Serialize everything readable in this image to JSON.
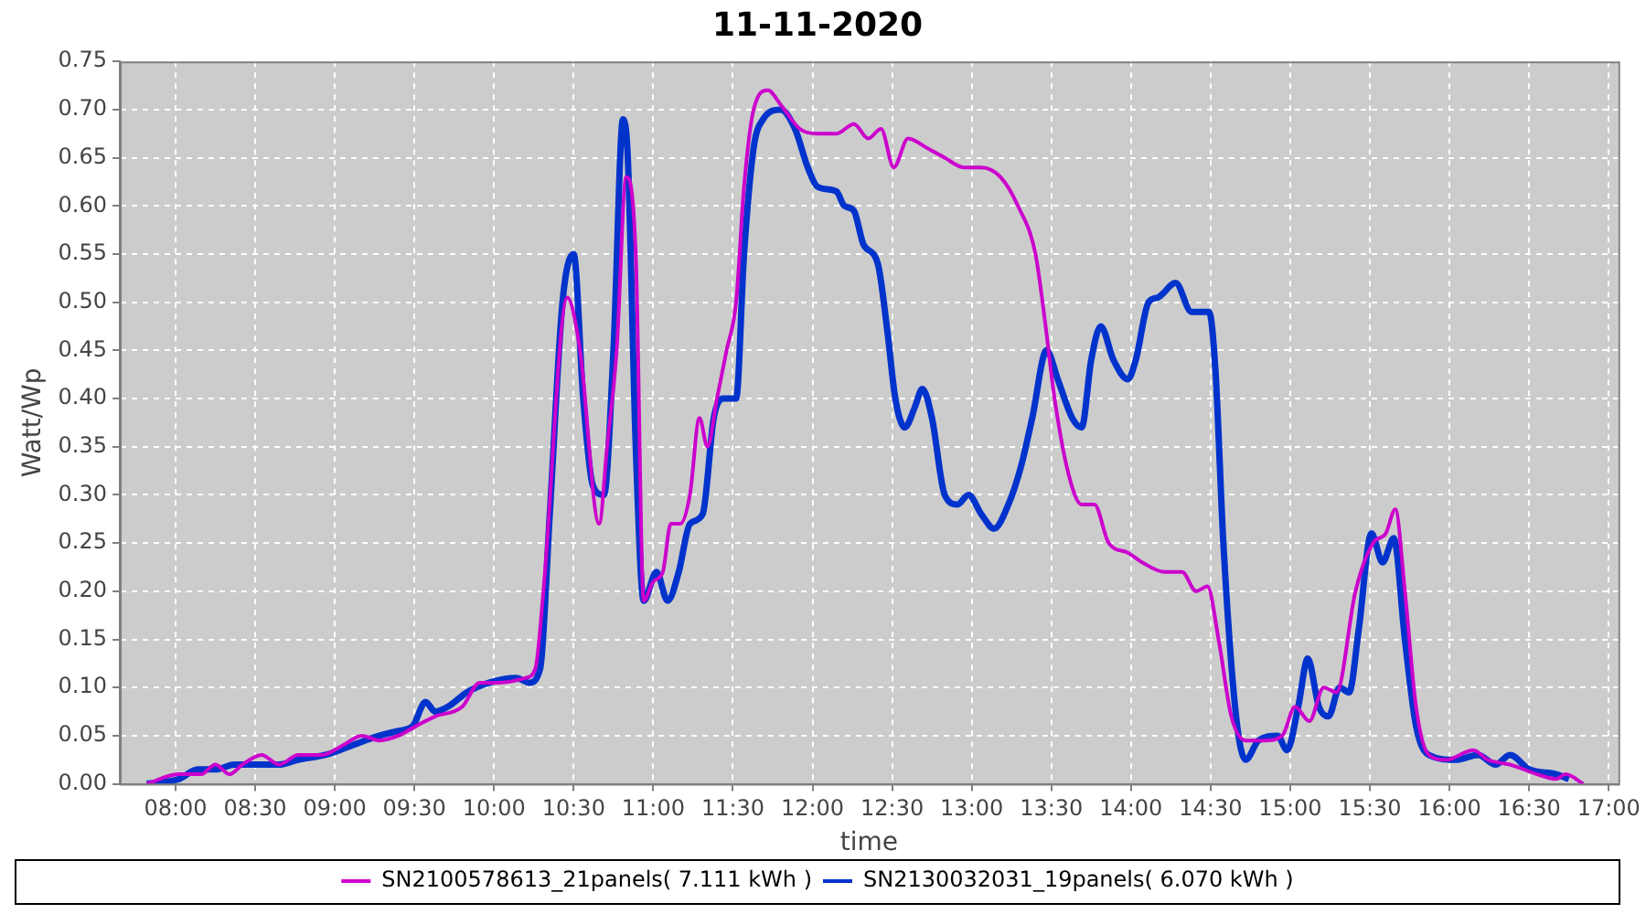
{
  "chart_data": {
    "type": "line",
    "title": "11-11-2020",
    "xlabel": "time",
    "ylabel": "Watt/Wp",
    "xlim": [
      7.65,
      17.06
    ],
    "ylim": [
      0,
      0.75
    ],
    "xticks": [
      {
        "value": 8,
        "label": "08:00"
      },
      {
        "value": 8.5,
        "label": "08:30"
      },
      {
        "value": 9,
        "label": "09:00"
      },
      {
        "value": 9.5,
        "label": "09:30"
      },
      {
        "value": 10,
        "label": "10:00"
      },
      {
        "value": 10.5,
        "label": "10:30"
      },
      {
        "value": 11,
        "label": "11:00"
      },
      {
        "value": 11.5,
        "label": "11:30"
      },
      {
        "value": 12,
        "label": "12:00"
      },
      {
        "value": 12.5,
        "label": "12:30"
      },
      {
        "value": 13,
        "label": "13:00"
      },
      {
        "value": 13.5,
        "label": "13:30"
      },
      {
        "value": 14,
        "label": "14:00"
      },
      {
        "value": 14.5,
        "label": "14:30"
      },
      {
        "value": 15,
        "label": "15:00"
      },
      {
        "value": 15.5,
        "label": "15:30"
      },
      {
        "value": 16,
        "label": "16:00"
      },
      {
        "value": 16.5,
        "label": "16:30"
      },
      {
        "value": 17,
        "label": "17:00"
      }
    ],
    "yticks": [
      {
        "value": 0,
        "label": "0.00"
      },
      {
        "value": 0.05,
        "label": "0.05"
      },
      {
        "value": 0.1,
        "label": "0.10"
      },
      {
        "value": 0.15,
        "label": "0.15"
      },
      {
        "value": 0.2,
        "label": "0.20"
      },
      {
        "value": 0.25,
        "label": "0.25"
      },
      {
        "value": 0.3,
        "label": "0.30"
      },
      {
        "value": 0.35,
        "label": "0.35"
      },
      {
        "value": 0.4,
        "label": "0.40"
      },
      {
        "value": 0.45,
        "label": "0.45"
      },
      {
        "value": 0.5,
        "label": "0.50"
      },
      {
        "value": 0.55,
        "label": "0.55"
      },
      {
        "value": 0.6,
        "label": "0.60"
      },
      {
        "value": 0.65,
        "label": "0.65"
      },
      {
        "value": 0.7,
        "label": "0.70"
      },
      {
        "value": 0.75,
        "label": "0.75"
      }
    ],
    "grid": true,
    "legend": "bottom",
    "series": [
      {
        "name": "SN2100578613_21panels( 7.111 kWh )",
        "color": "#cc00cc",
        "x": [
          7.82,
          8.02,
          8.16,
          8.25,
          8.34,
          8.42,
          8.54,
          8.65,
          8.77,
          8.92,
          9.05,
          9.17,
          9.28,
          9.4,
          9.51,
          9.63,
          9.8,
          9.91,
          10.03,
          10.2,
          10.26,
          10.31,
          10.46,
          10.54,
          10.66,
          10.71,
          10.77,
          10.83,
          10.89,
          10.94,
          11.0,
          11.06,
          11.11,
          11.17,
          11.23,
          11.29,
          11.34,
          11.4,
          11.46,
          11.52,
          11.57,
          11.63,
          11.72,
          11.8,
          11.92,
          12.03,
          12.15,
          12.26,
          12.35,
          12.43,
          12.51,
          12.6,
          12.72,
          12.83,
          12.95,
          13.06,
          13.18,
          13.29,
          13.4,
          13.46,
          13.52,
          13.61,
          13.69,
          13.77,
          13.86,
          13.98,
          14.07,
          14.21,
          14.32,
          14.41,
          14.48,
          14.55,
          14.63,
          14.72,
          14.84,
          14.95,
          15.03,
          15.12,
          15.21,
          15.29,
          15.41,
          15.52,
          15.6,
          15.66,
          15.72,
          15.79,
          15.87,
          15.98,
          16.15,
          16.24,
          16.38,
          16.55,
          16.67,
          16.73,
          16.84
        ],
        "values": [
          0.0,
          0.01,
          0.01,
          0.02,
          0.01,
          0.02,
          0.03,
          0.02,
          0.03,
          0.03,
          0.04,
          0.05,
          0.045,
          0.05,
          0.06,
          0.07,
          0.08,
          0.105,
          0.105,
          0.11,
          0.12,
          0.2,
          0.505,
          0.45,
          0.27,
          0.35,
          0.45,
          0.63,
          0.55,
          0.19,
          0.21,
          0.22,
          0.27,
          0.27,
          0.3,
          0.38,
          0.35,
          0.4,
          0.45,
          0.5,
          0.62,
          0.7,
          0.72,
          0.705,
          0.68,
          0.675,
          0.675,
          0.685,
          0.67,
          0.68,
          0.64,
          0.67,
          0.66,
          0.65,
          0.64,
          0.64,
          0.63,
          0.6,
          0.55,
          0.48,
          0.4,
          0.32,
          0.29,
          0.29,
          0.25,
          0.24,
          0.23,
          0.22,
          0.22,
          0.2,
          0.205,
          0.15,
          0.07,
          0.045,
          0.045,
          0.05,
          0.08,
          0.065,
          0.1,
          0.095,
          0.2,
          0.25,
          0.26,
          0.285,
          0.2,
          0.08,
          0.03,
          0.025,
          0.035,
          0.025,
          0.02,
          0.01,
          0.005,
          0.01,
          0.0
        ]
      },
      {
        "name": "SN2130032031_19panels( 6.070 kWh )",
        "color": "#0033cc",
        "x": [
          7.82,
          8.02,
          8.14,
          8.25,
          8.37,
          8.48,
          8.65,
          8.77,
          8.94,
          9.11,
          9.28,
          9.4,
          9.49,
          9.57,
          9.63,
          9.71,
          9.83,
          9.97,
          10.14,
          10.22,
          10.29,
          10.35,
          10.43,
          10.5,
          10.56,
          10.62,
          10.69,
          10.75,
          10.81,
          10.84,
          10.89,
          10.94,
          11.02,
          11.09,
          11.16,
          11.23,
          11.31,
          11.38,
          11.44,
          11.52,
          11.57,
          11.63,
          11.69,
          11.8,
          11.89,
          11.97,
          12.03,
          12.15,
          12.2,
          12.26,
          12.32,
          12.41,
          12.47,
          12.52,
          12.58,
          12.64,
          12.69,
          12.75,
          12.83,
          12.91,
          12.98,
          13.06,
          13.14,
          13.23,
          13.31,
          13.38,
          13.47,
          13.54,
          13.63,
          13.69,
          13.75,
          13.81,
          13.89,
          13.98,
          14.03,
          14.11,
          14.17,
          14.28,
          14.38,
          14.49,
          14.53,
          14.58,
          14.66,
          14.72,
          14.8,
          14.92,
          14.98,
          15.05,
          15.11,
          15.18,
          15.24,
          15.31,
          15.37,
          15.43,
          15.51,
          15.58,
          15.65,
          15.72,
          15.79,
          15.87,
          16.04,
          16.18,
          16.29,
          16.38,
          16.5,
          16.67,
          16.75
        ],
        "values": [
          0.0,
          0.005,
          0.015,
          0.015,
          0.02,
          0.02,
          0.02,
          0.025,
          0.03,
          0.04,
          0.05,
          0.055,
          0.06,
          0.085,
          0.075,
          0.08,
          0.095,
          0.105,
          0.11,
          0.105,
          0.12,
          0.28,
          0.5,
          0.55,
          0.4,
          0.31,
          0.3,
          0.45,
          0.69,
          0.65,
          0.35,
          0.19,
          0.22,
          0.19,
          0.22,
          0.27,
          0.28,
          0.38,
          0.4,
          0.4,
          0.55,
          0.66,
          0.69,
          0.7,
          0.68,
          0.64,
          0.62,
          0.615,
          0.6,
          0.595,
          0.56,
          0.54,
          0.47,
          0.4,
          0.37,
          0.39,
          0.41,
          0.38,
          0.3,
          0.29,
          0.3,
          0.28,
          0.265,
          0.29,
          0.33,
          0.38,
          0.45,
          0.42,
          0.38,
          0.37,
          0.44,
          0.475,
          0.44,
          0.42,
          0.44,
          0.5,
          0.505,
          0.52,
          0.49,
          0.49,
          0.43,
          0.25,
          0.07,
          0.025,
          0.045,
          0.05,
          0.035,
          0.08,
          0.13,
          0.08,
          0.07,
          0.1,
          0.095,
          0.16,
          0.26,
          0.23,
          0.255,
          0.15,
          0.06,
          0.03,
          0.025,
          0.03,
          0.02,
          0.03,
          0.015,
          0.01,
          0.005
        ]
      }
    ]
  }
}
